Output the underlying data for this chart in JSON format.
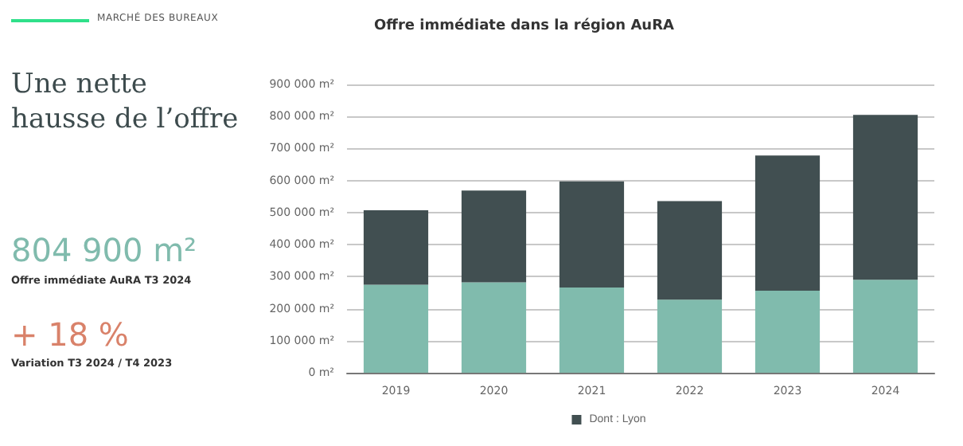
{
  "chart_data": {
    "type": "bar",
    "title": "Offre immédiate dans la région AuRA",
    "categories": [
      "2019",
      "2020",
      "2021",
      "2022",
      "2023",
      "2024"
    ],
    "stacked": true,
    "series": [
      {
        "color": "#80bbad",
        "values": [
          275000,
          282000,
          266000,
          228000,
          256000,
          290000
        ]
      },
      {
        "name": "Dont : Lyon",
        "color": "#414f51",
        "values": [
          232000,
          287000,
          331000,
          308000,
          422000,
          515000
        ]
      }
    ],
    "ylim": [
      0,
      900000
    ],
    "yticks": [
      {
        "value": 0,
        "label": "0 m²"
      },
      {
        "value": 100000,
        "label": "100 000 m²"
      },
      {
        "value": 200000,
        "label": "200 000 m²"
      },
      {
        "value": 300000,
        "label": "300 000 m²"
      },
      {
        "value": 400000,
        "label": "400 000 m²"
      },
      {
        "value": 500000,
        "label": "500 000 m²"
      },
      {
        "value": 600000,
        "label": "600 000 m²"
      },
      {
        "value": 700000,
        "label": "700 000 m²"
      },
      {
        "value": 800000,
        "label": "800 000 m²"
      },
      {
        "value": 900000,
        "label": "900 000 m²"
      }
    ],
    "grid": "y",
    "legend": "bottom",
    "annotations": [
      "MARCHÉ DES BUREAUX",
      "Une nette hausse de l’offre",
      "804 900 m²",
      "Offre immédiate AuRA T3 2024",
      "+ 18 %",
      "Variation T3 2024 / T4 2023"
    ]
  }
}
